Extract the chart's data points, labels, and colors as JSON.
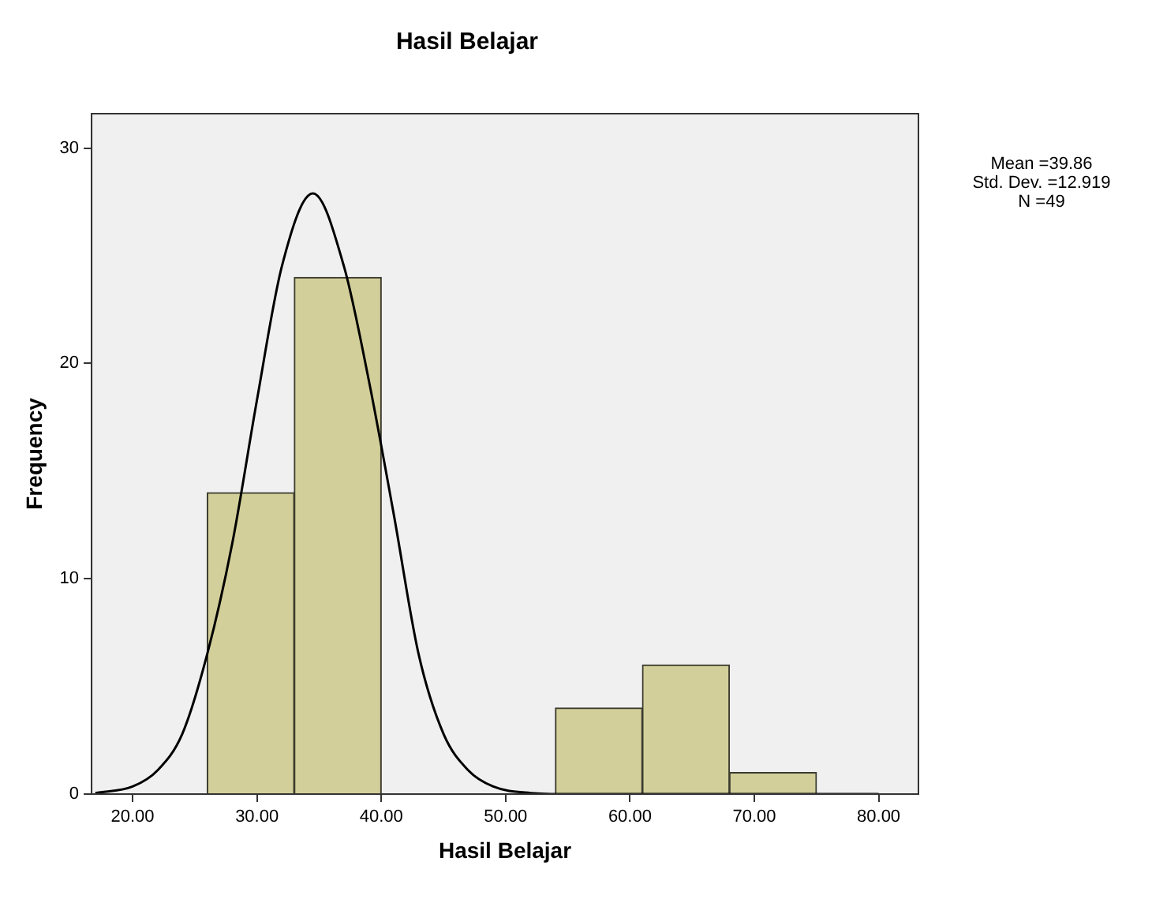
{
  "chart_data": {
    "type": "histogram",
    "title": "Hasil Belajar",
    "xlabel": "Hasil Belajar",
    "ylabel": "Frequency",
    "bins": [
      26,
      33,
      40,
      47,
      54,
      61,
      68,
      75
    ],
    "values": [
      14,
      24,
      0,
      0,
      4,
      6,
      1
    ],
    "color": "#d3cf9a",
    "series": [
      {
        "type": "line",
        "color": "#000000",
        "x": [
          17,
          20,
          22,
          24,
          26,
          28,
          30,
          32,
          34.5,
          37,
          39,
          41,
          43,
          45,
          47,
          49,
          52,
          55,
          80
        ],
        "values": [
          0.05,
          0.35,
          1.1,
          2.8,
          6.5,
          11.6,
          18.3,
          24.5,
          27.9,
          24.5,
          19.2,
          13,
          6.5,
          2.8,
          1.1,
          0.35,
          0.05,
          0,
          0
        ]
      }
    ],
    "xlim": [
      16.7,
      83.2
    ],
    "xticks": [
      {
        "value": 20,
        "label": "20.00"
      },
      {
        "value": 30,
        "label": "30.00"
      },
      {
        "value": 40,
        "label": "40.00"
      },
      {
        "value": 50,
        "label": "50.00"
      },
      {
        "value": 60,
        "label": "60.00"
      },
      {
        "value": 70,
        "label": "70.00"
      },
      {
        "value": 80,
        "label": "80.00"
      }
    ],
    "ylim": [
      0,
      31.6
    ],
    "yticks": [
      0,
      10,
      20,
      30
    ],
    "grid": false,
    "legend": false,
    "marker": "none",
    "line_style": "solid",
    "annotations": [
      "Mean =39.86",
      "Std. Dev. =12.919",
      "N =49"
    ]
  }
}
